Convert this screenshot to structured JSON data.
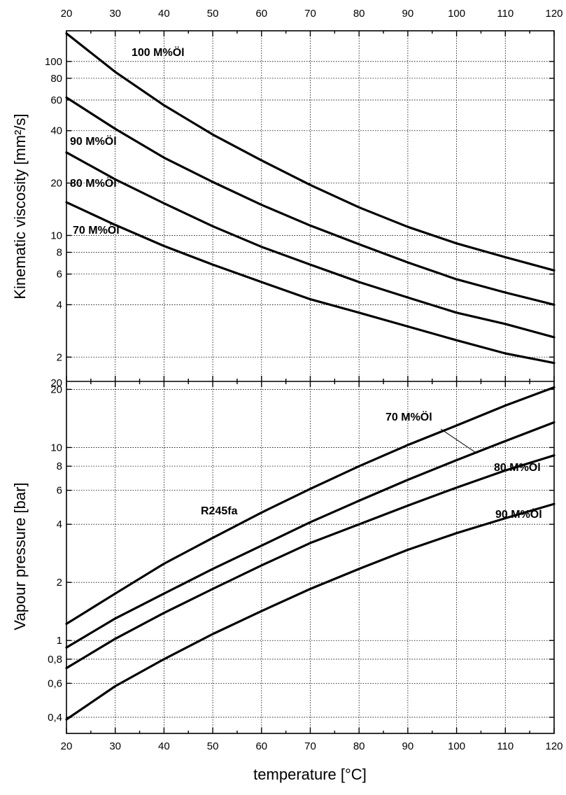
{
  "chart_data": [
    {
      "type": "line",
      "panel": "upper",
      "ylabel": "Kinematic viscosity [mm²/s]",
      "xlabel": "",
      "xlim": [
        20,
        120
      ],
      "ylim": [
        1.45,
        150
      ],
      "yscale": "log",
      "grid": true,
      "x_ticks": [
        "20",
        "30",
        "40",
        "50",
        "60",
        "70",
        "80",
        "90",
        "100",
        "110",
        "120"
      ],
      "y_ticks": [
        "2",
        "4",
        "6",
        "8",
        "10",
        "20",
        "40",
        "60",
        "80",
        "100"
      ],
      "top_label": "20",
      "series": [
        {
          "name": "100 M%Öl",
          "x": [
            20,
            30,
            40,
            50,
            60,
            70,
            80,
            90,
            100,
            110,
            120
          ],
          "y": [
            145,
            87,
            56,
            38,
            27,
            19.5,
            14.5,
            11.2,
            9,
            7.5,
            6.3
          ]
        },
        {
          "name": "90 M%Öl",
          "x": [
            20,
            30,
            40,
            50,
            60,
            70,
            80,
            90,
            100,
            110,
            120
          ],
          "y": [
            62,
            41,
            28,
            20.3,
            15,
            11.4,
            8.9,
            7,
            5.6,
            4.7,
            4
          ]
        },
        {
          "name": "80 M%Öl",
          "x": [
            20,
            30,
            40,
            50,
            60,
            70,
            80,
            90,
            100,
            110,
            120
          ],
          "y": [
            30,
            21,
            15.3,
            11.3,
            8.6,
            6.8,
            5.4,
            4.4,
            3.6,
            3.1,
            2.6
          ]
        },
        {
          "name": "70 M%Öl",
          "x": [
            20,
            30,
            40,
            50,
            60,
            70,
            80,
            90,
            100,
            110,
            120
          ],
          "y": [
            15.5,
            11.5,
            8.7,
            6.8,
            5.4,
            4.3,
            3.6,
            3,
            2.5,
            2.1,
            1.85
          ]
        }
      ]
    },
    {
      "type": "line",
      "panel": "lower",
      "ylabel": "Vapour pressure [bar]",
      "xlabel": "temperature [°C]",
      "xlim": [
        20,
        120
      ],
      "ylim": [
        0.33,
        22
      ],
      "yscale": "log",
      "grid": true,
      "x_ticks": [
        "20",
        "30",
        "40",
        "50",
        "60",
        "70",
        "80",
        "90",
        "100",
        "110",
        "120"
      ],
      "y_ticks": [
        "0,4",
        "0,6",
        "0,8",
        "1",
        "2",
        "4",
        "6",
        "8",
        "10",
        "20"
      ],
      "series": [
        {
          "name": "R245fa",
          "x": [
            20,
            30,
            40,
            50,
            60,
            70,
            80,
            90,
            100,
            110,
            120
          ],
          "y": [
            1.22,
            1.75,
            2.5,
            3.4,
            4.6,
            6.1,
            8,
            10.3,
            13,
            16.5,
            20.5
          ]
        },
        {
          "name": "70 M%Öl",
          "x": [
            20,
            30,
            40,
            50,
            60,
            70,
            80,
            90,
            100,
            110,
            120
          ],
          "y": [
            0.92,
            1.3,
            1.75,
            2.35,
            3.1,
            4.1,
            5.3,
            6.8,
            8.6,
            10.8,
            13.5
          ]
        },
        {
          "name": "80 M%Öl",
          "x": [
            20,
            30,
            40,
            50,
            60,
            70,
            80,
            90,
            100,
            110,
            120
          ],
          "y": [
            0.72,
            1.02,
            1.39,
            1.85,
            2.45,
            3.2,
            4,
            5,
            6.2,
            7.6,
            9.1
          ]
        },
        {
          "name": "90 M%Öl",
          "x": [
            20,
            30,
            40,
            50,
            60,
            70,
            80,
            90,
            100,
            110,
            120
          ],
          "y": [
            0.39,
            0.58,
            0.8,
            1.08,
            1.42,
            1.85,
            2.35,
            2.95,
            3.6,
            4.3,
            5.1
          ]
        }
      ]
    }
  ]
}
